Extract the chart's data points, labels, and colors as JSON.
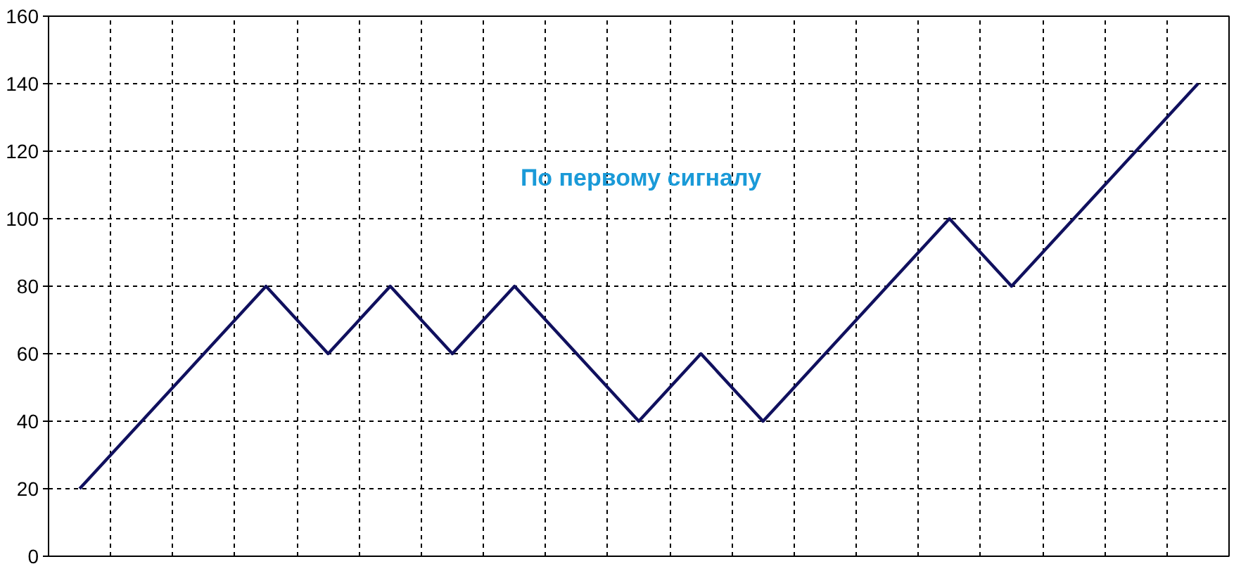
{
  "chart_data": {
    "type": "line",
    "title": "По первому сигналу",
    "categories": [
      null,
      null,
      null,
      null,
      null,
      null,
      null,
      null,
      null,
      null,
      null,
      null,
      null,
      null,
      null,
      null,
      null,
      null,
      null
    ],
    "series": [
      {
        "color": "#10105e",
        "values": [
          20,
          40,
          60,
          80,
          60,
          80,
          60,
          80,
          60,
          40,
          60,
          40,
          60,
          80,
          100,
          80,
          100,
          120,
          140
        ]
      }
    ],
    "ylim": [
      0,
      160
    ],
    "yticks": [
      0,
      20,
      40,
      60,
      80,
      100,
      120,
      140,
      160
    ],
    "grid": true,
    "tick_labels": "y"
  }
}
